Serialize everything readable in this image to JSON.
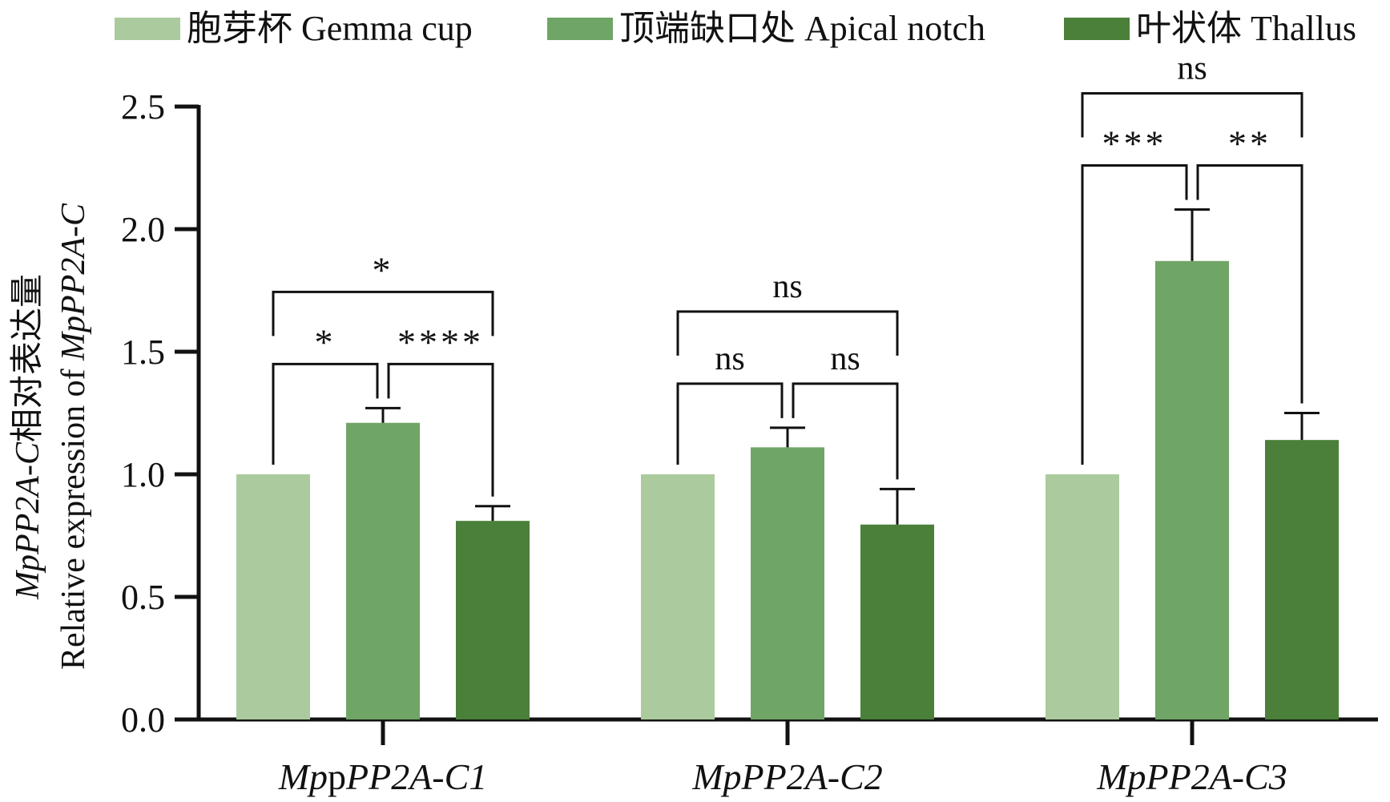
{
  "chart_data": {
    "type": "bar",
    "categories": [
      {
        "prefix": "Mp",
        "mid": "p",
        "suffix": "PP2A-C1"
      },
      {
        "prefix": "MpPP2A-C2",
        "mid": "",
        "suffix": ""
      },
      {
        "prefix": "MpPP2A-C3",
        "mid": "",
        "suffix": ""
      }
    ],
    "series": [
      {
        "name": "胞芽杯 Gemma cup",
        "color": "#abcb9f",
        "values": [
          1.0,
          1.0,
          1.0
        ],
        "errors": [
          0,
          0,
          0
        ]
      },
      {
        "name": "顶端缺口处 Apical notch",
        "color": "#6fa565",
        "values": [
          1.21,
          1.11,
          1.87
        ],
        "errors": [
          0.06,
          0.08,
          0.21
        ]
      },
      {
        "name": "叶状体 Thallus",
        "color": "#4a8039",
        "values": [
          0.81,
          0.795,
          1.14
        ],
        "errors": [
          0.06,
          0.145,
          0.11
        ]
      }
    ],
    "ylabel": {
      "line1_italic": "MpPP2A-C",
      "line1_rest": "相对表达量",
      "line2": "Relative expression of ",
      "line2_italic": "MpPP2A-C"
    },
    "ylim": [
      0,
      2.5
    ],
    "yticks": [
      "0.0",
      "0.5",
      "1.0",
      "1.5",
      "2.0",
      "2.5"
    ],
    "grid": false,
    "legend_position": "top",
    "significance": [
      {
        "group": 0,
        "pairs": [
          {
            "from": 0,
            "to": 1,
            "label": "*",
            "level": 1
          },
          {
            "from": 1,
            "to": 2,
            "label": "****",
            "level": 1
          },
          {
            "from": 0,
            "to": 2,
            "label": "*",
            "level": 2
          }
        ]
      },
      {
        "group": 1,
        "pairs": [
          {
            "from": 0,
            "to": 1,
            "label": "ns",
            "level": 1
          },
          {
            "from": 1,
            "to": 2,
            "label": "ns",
            "level": 1
          },
          {
            "from": 0,
            "to": 2,
            "label": "ns",
            "level": 2
          }
        ]
      },
      {
        "group": 2,
        "pairs": [
          {
            "from": 0,
            "to": 1,
            "label": "***",
            "level": 1
          },
          {
            "from": 1,
            "to": 2,
            "label": "**",
            "level": 1
          },
          {
            "from": 0,
            "to": 2,
            "label": "ns",
            "level": 2
          }
        ]
      }
    ]
  }
}
